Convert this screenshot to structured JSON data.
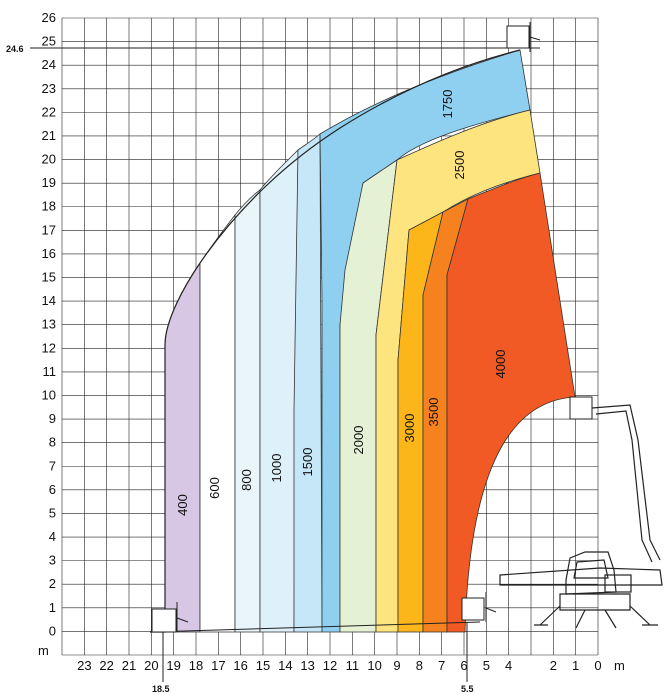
{
  "chart_data": {
    "type": "area",
    "title": "",
    "xlabel": "m",
    "ylabel": "m",
    "x_direction": "reversed",
    "xlim": [
      0,
      24
    ],
    "ylim": [
      -1,
      26
    ],
    "grid": true,
    "x_ticks": [
      23,
      22,
      21,
      20,
      19,
      18,
      17,
      16,
      15,
      14,
      13,
      12,
      11,
      10,
      9,
      8,
      7,
      6,
      5,
      4,
      2,
      1,
      0
    ],
    "y_ticks": [
      0,
      1,
      2,
      3,
      4,
      5,
      6,
      7,
      8,
      9,
      10,
      11,
      12,
      13,
      14,
      15,
      16,
      17,
      18,
      19,
      20,
      21,
      22,
      23,
      24,
      25,
      26
    ],
    "annotations": [
      {
        "text": "24.6",
        "axis": "y",
        "value": 24.6
      },
      {
        "text": "18.5",
        "axis": "x",
        "value": 18.5
      },
      {
        "text": "5.5",
        "axis": "x",
        "value": 5.5
      }
    ],
    "envelope": [
      {
        "x": 18.3,
        "y": 0
      },
      {
        "x": 18.3,
        "y": 12.2
      },
      {
        "x": 17.6,
        "y": 14.6
      },
      {
        "x": 15.4,
        "y": 18.2
      },
      {
        "x": 13.0,
        "y": 20.5
      },
      {
        "x": 10.5,
        "y": 22.1
      },
      {
        "x": 8.0,
        "y": 23.3
      },
      {
        "x": 5.5,
        "y": 24.1
      },
      {
        "x": 3.0,
        "y": 24.6
      }
    ],
    "zones": [
      {
        "label": "400",
        "color": "#d7c7e4",
        "x_left": 18.3,
        "x_right": 16.9,
        "y_top": 15.7
      },
      {
        "label": "600",
        "color": "#ffffff",
        "x_left": 16.9,
        "x_right": 15.4,
        "y_top": 17.8
      },
      {
        "label": "800",
        "color": "#eaf4fb",
        "x_left": 15.4,
        "x_right": 14.0,
        "y_top": 19.1
      },
      {
        "label": "1000",
        "color": "#def0fa",
        "x_left": 14.0,
        "x_right": 12.6,
        "y_top": 20.1
      },
      {
        "label": "1500",
        "color": "#c6e7f8",
        "x_left": 12.6,
        "x_right": 11.5,
        "y_top": 20.9
      },
      {
        "label": "1750",
        "color": "#8fd0f1",
        "x_left": 11.5,
        "x_right": 2.9,
        "y_top": 24.6
      },
      {
        "label": "2000",
        "color": "#e4f1d4",
        "x_left": 10.6,
        "x_right": 8.1,
        "y_top": 19.0
      },
      {
        "label": "2500",
        "color": "#fde47f",
        "x_left": 9.1,
        "x_right": 2.4,
        "y_top": 22.2
      },
      {
        "label": "3000",
        "color": "#fcb61a",
        "x_left": 8.1,
        "x_right": 6.3,
        "y_top": 17.8
      },
      {
        "label": "3500",
        "color": "#f5821f",
        "x_left": 7.1,
        "x_right": 5.6,
        "y_top": 18.1
      },
      {
        "label": "4000",
        "color": "#f15a24",
        "x_left": 6.3,
        "x_right": 1.1,
        "y_top": 19.4
      }
    ],
    "labels": {
      "x_unit": "m",
      "y_unit": "m"
    }
  }
}
